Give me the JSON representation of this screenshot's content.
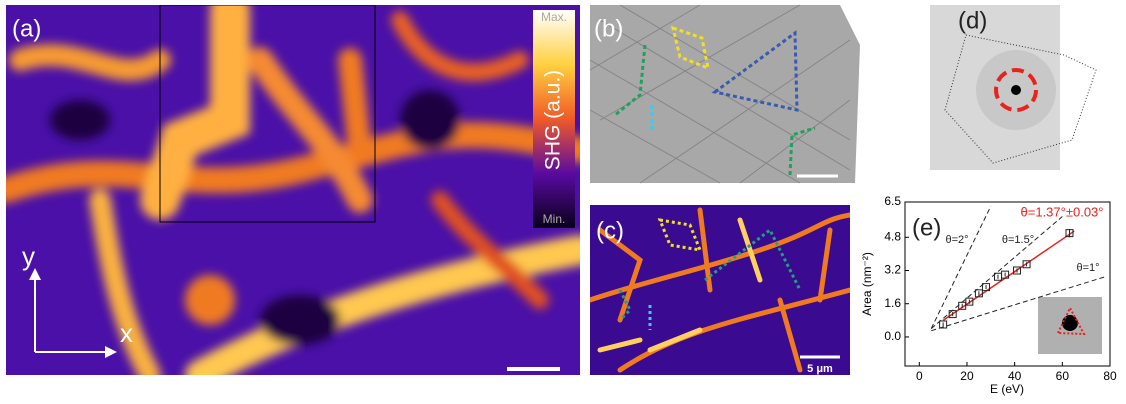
{
  "panels": {
    "a": {
      "label": "(a)",
      "max": "Max.",
      "min": "Min.",
      "colorbar": "SHG (a.u.)",
      "y_axis": "y",
      "x_axis": "x"
    },
    "b": {
      "label": "(b)"
    },
    "c": {
      "label": "(c)",
      "scale": "5 μm"
    },
    "d": {
      "label": "(d)"
    }
  },
  "chart_data": {
    "type": "scatter",
    "panel_label": "(e)",
    "x_label": "E (eV)",
    "y_label": "Area (nm⁻²)",
    "xlim": [
      -6,
      80
    ],
    "xticks": [
      0,
      20,
      40,
      60,
      80
    ],
    "ylim": [
      -1.4,
      6.5
    ],
    "yticks": [
      {
        "value": 0,
        "label": "0.0"
      },
      1.6,
      3.2,
      4.8,
      6.5
    ],
    "x": [
      10,
      14,
      18,
      21,
      25,
      28,
      33,
      36,
      41,
      45,
      63
    ],
    "values": [
      0.6,
      1.1,
      1.5,
      1.7,
      2.1,
      2.4,
      2.9,
      3.0,
      3.2,
      3.5,
      5.0
    ],
    "errors": [
      0.1,
      0.1,
      0.1,
      0.1,
      0.1,
      0.1,
      0.1,
      0.1,
      0.1,
      0.1,
      0.2
    ],
    "color": "#222222",
    "lines": [
      {
        "name": "θ=1.37°±0.03°",
        "color": "#e8231e",
        "dash": false,
        "x": [
          10,
          65
        ],
        "values": [
          0.8,
          5.1
        ]
      },
      {
        "name": "θ=2°",
        "color": "#222222",
        "dash": true,
        "x": [
          5,
          30
        ],
        "values": [
          0.4,
          6.3
        ]
      },
      {
        "name": "θ=1.5°",
        "color": "#222222",
        "dash": true,
        "x": [
          5,
          60
        ],
        "values": [
          0.4,
          5.8
        ]
      },
      {
        "name": "θ=1°",
        "color": "#222222",
        "dash": true,
        "x": [
          5,
          78
        ],
        "values": [
          0.3,
          2.9
        ]
      }
    ]
  }
}
